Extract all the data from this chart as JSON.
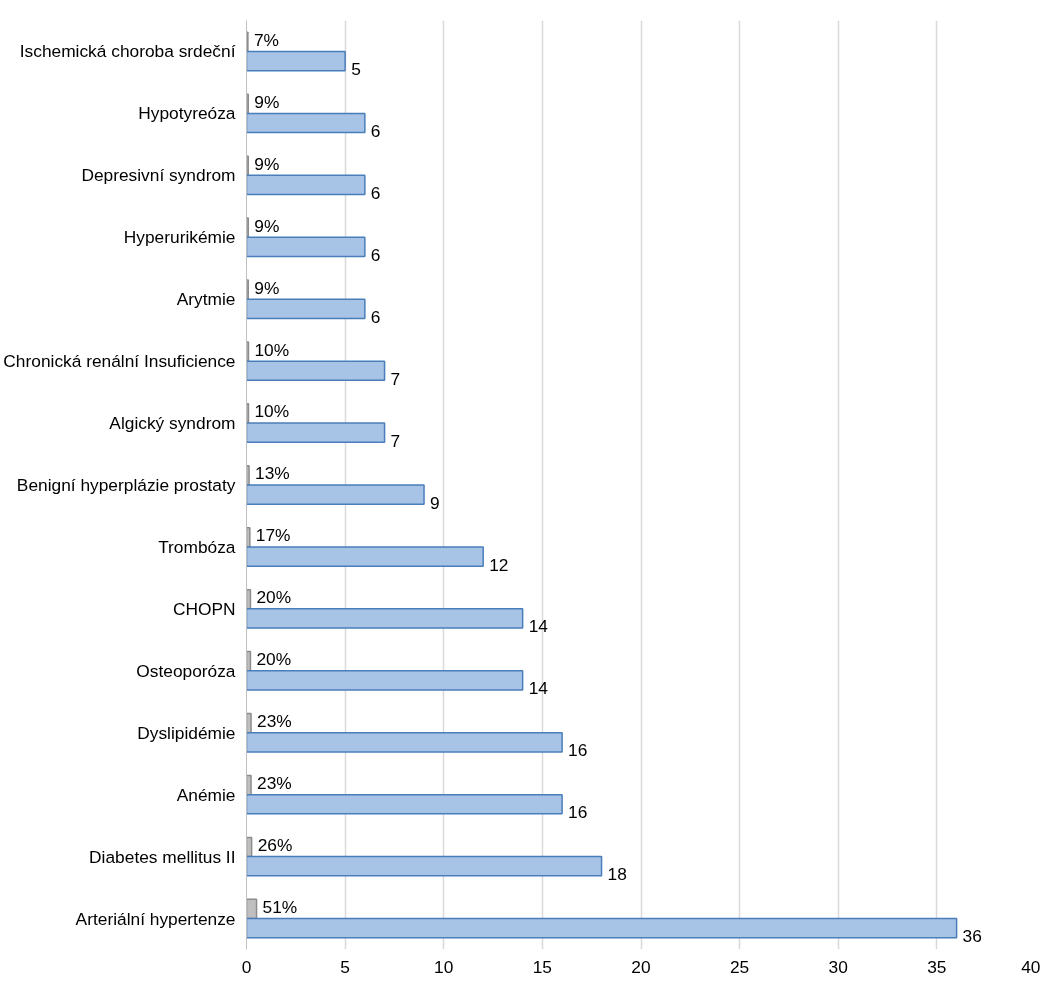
{
  "chart_data": {
    "type": "bar",
    "orientation": "horizontal",
    "categories": [
      "Ischemická choroba srdeční",
      "Hypotyreóza",
      "Depresivní syndrom",
      "Hyperurikémie",
      "Arytmie",
      "Chronická renální Insuficience",
      "Algický syndrom",
      "Benigní hyperplázie prostaty",
      "Trombóza",
      "CHOPN",
      "Osteoporóza",
      "Dyslipidémie",
      "Anémie",
      "Diabetes mellitus II",
      "Arteriální hypertenze"
    ],
    "series": [
      {
        "color": "#bfbfbf",
        "values": [
          0.07,
          0.09,
          0.09,
          0.09,
          0.09,
          0.1,
          0.1,
          0.13,
          0.17,
          0.2,
          0.2,
          0.23,
          0.23,
          0.26,
          0.51
        ],
        "value_labels": [
          "7%",
          "9%",
          "9%",
          "9%",
          "9%",
          "10%",
          "10%",
          "13%",
          "17%",
          "20%",
          "20%",
          "23%",
          "23%",
          "26%",
          "51%"
        ]
      },
      {
        "color": "#a7c3e6",
        "values": [
          5,
          6,
          6,
          6,
          6,
          7,
          7,
          9,
          12,
          14,
          14,
          16,
          16,
          18,
          36
        ],
        "value_labels": [
          "5",
          "6",
          "6",
          "6",
          "6",
          "7",
          "7",
          "9",
          "12",
          "14",
          "14",
          "16",
          "16",
          "18",
          "36"
        ]
      }
    ],
    "xlim": [
      0,
      40
    ],
    "xticks": [
      0,
      5,
      10,
      15,
      20,
      25,
      30,
      35,
      40
    ],
    "grid": "x"
  }
}
